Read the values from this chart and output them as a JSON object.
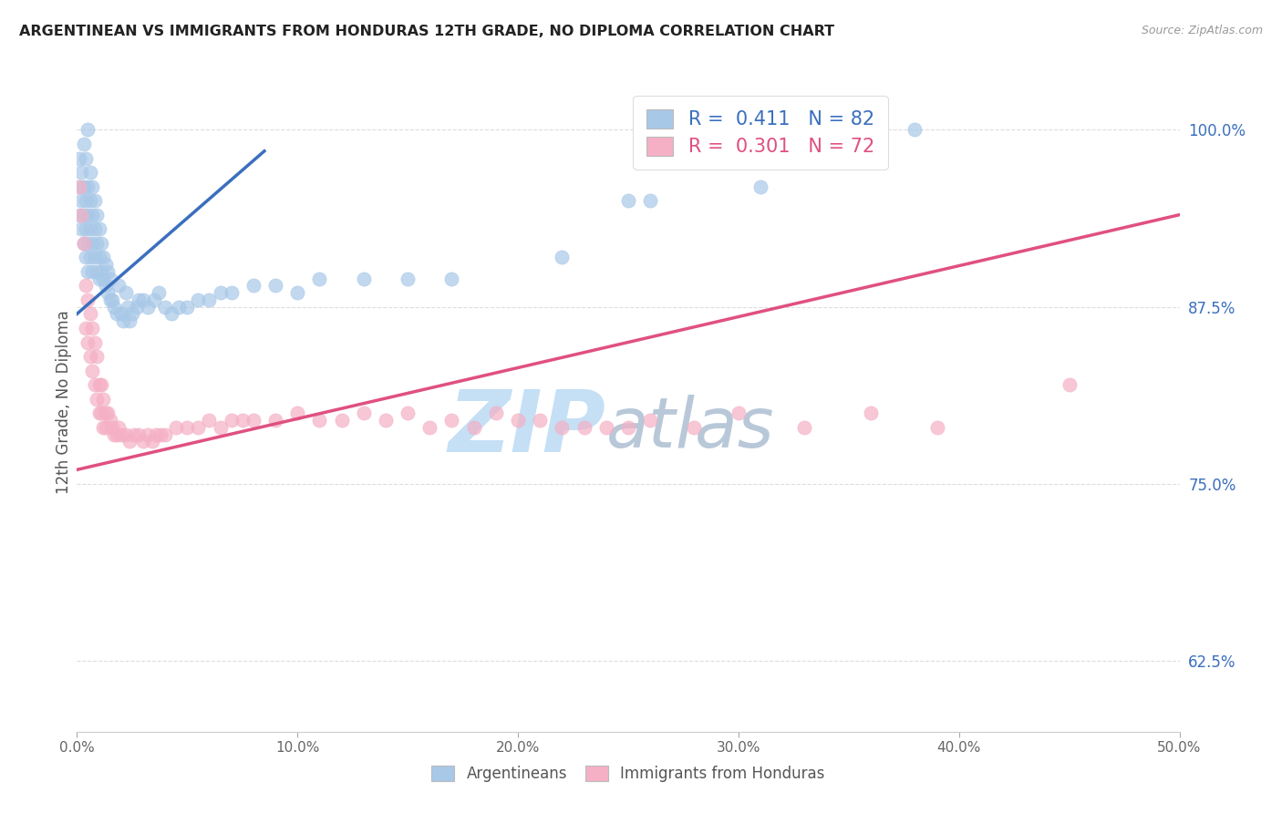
{
  "title": "ARGENTINEAN VS IMMIGRANTS FROM HONDURAS 12TH GRADE, NO DIPLOMA CORRELATION CHART",
  "source": "Source: ZipAtlas.com",
  "xlabel_ticks": [
    "0.0%",
    "10.0%",
    "20.0%",
    "30.0%",
    "40.0%",
    "50.0%"
  ],
  "xlabel_values": [
    0.0,
    0.1,
    0.2,
    0.3,
    0.4,
    0.5
  ],
  "ylabel_ticks": [
    "62.5%",
    "75.0%",
    "87.5%",
    "100.0%"
  ],
  "ylabel_values": [
    0.625,
    0.75,
    0.875,
    1.0
  ],
  "xlim": [
    0.0,
    0.5
  ],
  "ylim": [
    0.575,
    1.04
  ],
  "ylabel": "12th Grade, No Diploma",
  "blue_R": "0.411",
  "blue_N": "82",
  "pink_R": "0.301",
  "pink_N": "72",
  "blue_color": "#a8c8e8",
  "pink_color": "#f5b0c5",
  "blue_line_color": "#3a6fbd",
  "pink_line_color": "#e05080",
  "blue_scatter_x": [
    0.001,
    0.001,
    0.001,
    0.002,
    0.002,
    0.002,
    0.003,
    0.003,
    0.003,
    0.003,
    0.004,
    0.004,
    0.004,
    0.004,
    0.005,
    0.005,
    0.005,
    0.005,
    0.005,
    0.006,
    0.006,
    0.006,
    0.006,
    0.007,
    0.007,
    0.007,
    0.007,
    0.008,
    0.008,
    0.008,
    0.009,
    0.009,
    0.009,
    0.01,
    0.01,
    0.01,
    0.011,
    0.011,
    0.012,
    0.012,
    0.013,
    0.013,
    0.014,
    0.014,
    0.015,
    0.015,
    0.016,
    0.017,
    0.018,
    0.019,
    0.02,
    0.021,
    0.022,
    0.023,
    0.024,
    0.025,
    0.027,
    0.028,
    0.03,
    0.032,
    0.035,
    0.037,
    0.04,
    0.043,
    0.046,
    0.05,
    0.055,
    0.06,
    0.065,
    0.07,
    0.08,
    0.09,
    0.1,
    0.11,
    0.13,
    0.15,
    0.17,
    0.22,
    0.25,
    0.26,
    0.31,
    0.38
  ],
  "blue_scatter_y": [
    0.94,
    0.96,
    0.98,
    0.93,
    0.95,
    0.97,
    0.92,
    0.94,
    0.96,
    0.99,
    0.91,
    0.93,
    0.95,
    0.98,
    0.9,
    0.92,
    0.94,
    0.96,
    1.0,
    0.91,
    0.93,
    0.95,
    0.97,
    0.9,
    0.92,
    0.94,
    0.96,
    0.91,
    0.93,
    0.95,
    0.9,
    0.92,
    0.94,
    0.895,
    0.91,
    0.93,
    0.9,
    0.92,
    0.895,
    0.91,
    0.89,
    0.905,
    0.885,
    0.9,
    0.88,
    0.895,
    0.88,
    0.875,
    0.87,
    0.89,
    0.87,
    0.865,
    0.885,
    0.875,
    0.865,
    0.87,
    0.875,
    0.88,
    0.88,
    0.875,
    0.88,
    0.885,
    0.875,
    0.87,
    0.875,
    0.875,
    0.88,
    0.88,
    0.885,
    0.885,
    0.89,
    0.89,
    0.885,
    0.895,
    0.895,
    0.895,
    0.895,
    0.91,
    0.95,
    0.95,
    0.96,
    1.0
  ],
  "pink_scatter_x": [
    0.001,
    0.002,
    0.003,
    0.004,
    0.004,
    0.005,
    0.005,
    0.006,
    0.006,
    0.007,
    0.007,
    0.008,
    0.008,
    0.009,
    0.009,
    0.01,
    0.01,
    0.011,
    0.011,
    0.012,
    0.012,
    0.013,
    0.013,
    0.014,
    0.015,
    0.016,
    0.017,
    0.018,
    0.019,
    0.02,
    0.022,
    0.024,
    0.026,
    0.028,
    0.03,
    0.032,
    0.034,
    0.036,
    0.038,
    0.04,
    0.045,
    0.05,
    0.055,
    0.06,
    0.065,
    0.07,
    0.075,
    0.08,
    0.09,
    0.1,
    0.11,
    0.12,
    0.13,
    0.14,
    0.15,
    0.16,
    0.17,
    0.18,
    0.19,
    0.2,
    0.21,
    0.22,
    0.23,
    0.24,
    0.25,
    0.26,
    0.28,
    0.3,
    0.33,
    0.36,
    0.39,
    0.45
  ],
  "pink_scatter_y": [
    0.96,
    0.94,
    0.92,
    0.89,
    0.86,
    0.88,
    0.85,
    0.87,
    0.84,
    0.86,
    0.83,
    0.85,
    0.82,
    0.84,
    0.81,
    0.82,
    0.8,
    0.82,
    0.8,
    0.81,
    0.79,
    0.8,
    0.79,
    0.8,
    0.795,
    0.79,
    0.785,
    0.785,
    0.79,
    0.785,
    0.785,
    0.78,
    0.785,
    0.785,
    0.78,
    0.785,
    0.78,
    0.785,
    0.785,
    0.785,
    0.79,
    0.79,
    0.79,
    0.795,
    0.79,
    0.795,
    0.795,
    0.795,
    0.795,
    0.8,
    0.795,
    0.795,
    0.8,
    0.795,
    0.8,
    0.79,
    0.795,
    0.79,
    0.8,
    0.795,
    0.795,
    0.79,
    0.79,
    0.79,
    0.79,
    0.795,
    0.79,
    0.8,
    0.79,
    0.8,
    0.79,
    0.82
  ],
  "blue_trend_x": [
    0.0,
    0.085
  ],
  "blue_trend_y": [
    0.87,
    0.985
  ],
  "pink_trend_x": [
    0.0,
    0.5
  ],
  "pink_trend_y": [
    0.76,
    0.94
  ],
  "watermark_zip": "ZIP",
  "watermark_atlas": "atlas",
  "watermark_color_zip": "#c5dff5",
  "watermark_color_atlas": "#b8c8d8",
  "grid_color": "#dddddd",
  "legend_entry1": "R =  0.411   N = 82",
  "legend_entry2": "R =  0.301   N = 72",
  "legend_label1": "Argentineans",
  "legend_label2": "Immigrants from Honduras"
}
